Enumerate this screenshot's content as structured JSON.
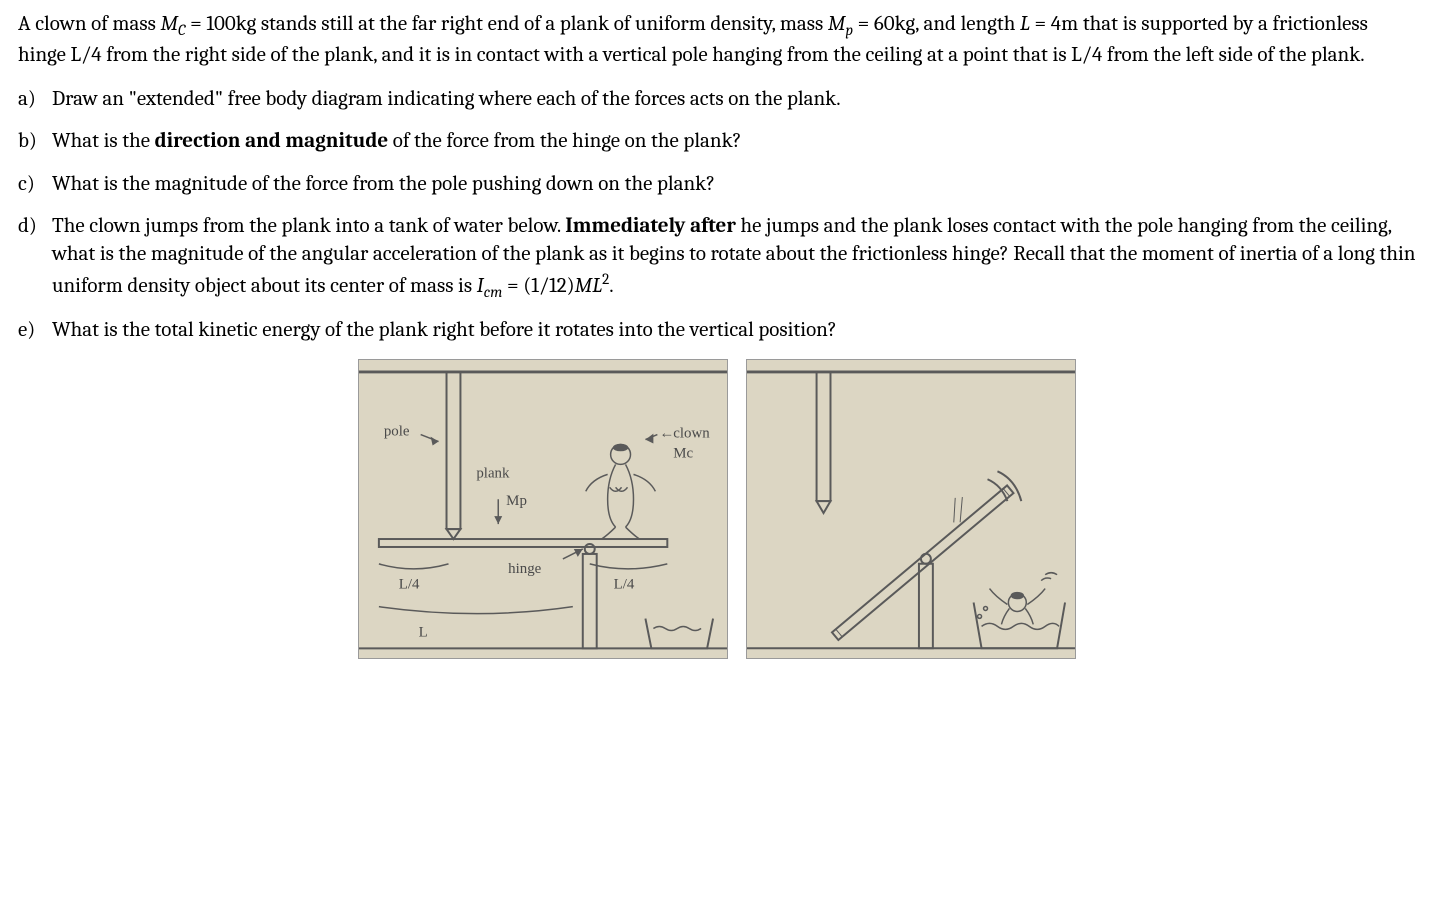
{
  "problem": {
    "intro_html": "A clown of mass <span class='var'>M<span class='sub'>C</span></span> = 100kg stands still at the far right end of a plank of uniform density, mass <span class='var'>M<span class='sub'>p</span></span> = 60kg, and length <span class='var'>L</span> = 4m that is supported by a frictionless hinge L/4 from the right side of the plank, and it is in contact with a vertical pole hanging from the ceiling at a point that is L/4 from the left side of the plank.",
    "parts": [
      {
        "marker": "a)",
        "html": "Draw an \"extended\" free body diagram indicating where each of the forces acts on the plank."
      },
      {
        "marker": "b)",
        "html": "What is the <b>direction and magnitude</b> of the force from the hinge on the plank?"
      },
      {
        "marker": "c)",
        "html": "What is the magnitude of the force from the pole pushing down on the plank?"
      },
      {
        "marker": "d)",
        "html": "The clown jumps from the plank into a tank of water below.  <b>Immediately after</b> he jumps and the plank loses contact with the pole hanging from the ceiling, what is the magnitude of the angular acceleration of the plank as it begins to rotate about the frictionless hinge?  Recall that the moment of inertia of a long thin uniform density object about its center of mass is <span class='var'>I<span class='sub'>cm</span></span> = (1/12)<span class='var'>ML</span><span class='sup'>2</span>."
      },
      {
        "marker": "e)",
        "html": "What is the total kinetic energy of the plank right before it rotates into the vertical position?"
      }
    ]
  },
  "figure1": {
    "bg": "#dcd6c3",
    "stroke": "#5a5a5a",
    "labels": {
      "pole": "pole",
      "clown": "clown",
      "mc": "Mc",
      "plank": "plank",
      "mp": "Mp",
      "hinge": "hinge",
      "Lq1": "L/4",
      "Lq2": "L/4",
      "L": "L"
    }
  },
  "figure2": {
    "bg": "#dcd6c3",
    "stroke": "#5a5a5a"
  }
}
